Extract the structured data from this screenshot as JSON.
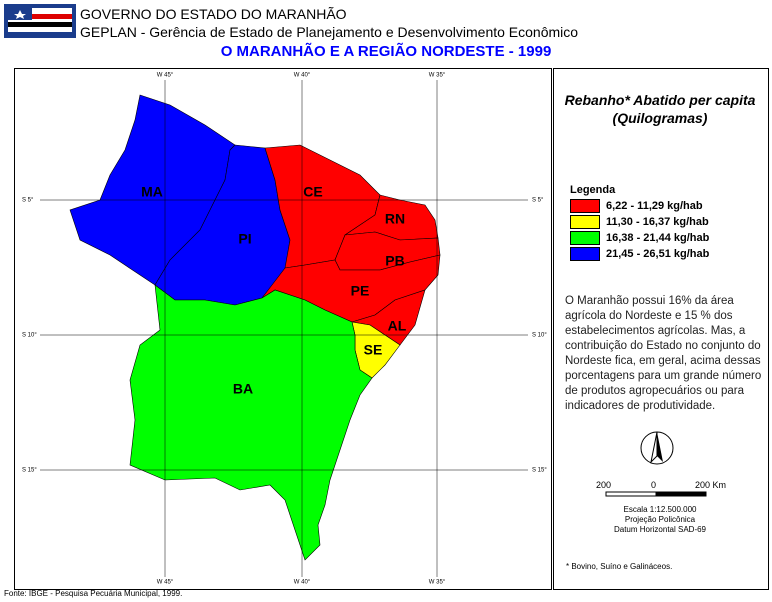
{
  "header": {
    "agency": "GOVERNO DO ESTADO DO MARANHÃO",
    "department": "GEPLAN - Gerência de Estado de Planejamento e Desenvolvimento Econômico",
    "title": "O MARANHÃO E A REGIÃO NORDESTE - 1999"
  },
  "map": {
    "longitudes": [
      "W 45°",
      "W 40°",
      "W 35°"
    ],
    "latitudes": [
      "S 5°",
      "S 10°",
      "S 15°"
    ],
    "states": [
      {
        "label": "MA",
        "class": 3
      },
      {
        "label": "PI",
        "class": 3
      },
      {
        "label": "CE",
        "class": 0
      },
      {
        "label": "RN",
        "class": 0
      },
      {
        "label": "PB",
        "class": 0
      },
      {
        "label": "PE",
        "class": 0
      },
      {
        "label": "AL",
        "class": 0
      },
      {
        "label": "SE",
        "class": 1
      },
      {
        "label": "BA",
        "class": 2
      }
    ]
  },
  "panel": {
    "title": "Rebanho* Abatido per capita",
    "unit": "(Quilogramas)",
    "legend_title": "Legenda",
    "legend": [
      {
        "label": "6,22 - 11,29 kg/hab",
        "color": "#ff0000"
      },
      {
        "label": "11,30 - 16,37 kg/hab",
        "color": "#ffff00"
      },
      {
        "label": "16,38 - 21,44 kg/hab",
        "color": "#00ff00"
      },
      {
        "label": "21,45 - 26,51 kg/hab",
        "color": "#0000ff"
      }
    ],
    "description": "O Maranhão possui 16% da área agrícola do Nordeste e 15 % dos estabelecimentos agrícolas. Mas, a contribuição do Estado no conjunto do Nordeste fica, em geral, acima dessas porcentagens para um grande número de produtos agropecuários ou para indicadores de produtividade.",
    "scale_labels": [
      "200",
      "0",
      "200 Km"
    ],
    "scale": "Escala 1:12.500.000",
    "projection": "Projeção Policônica",
    "datum": "Datum Horizontal SAD-69",
    "footnote": "* Bovino, Suíno e Galináceos."
  },
  "source": "Fonte: IBGE - Pesquisa Pecuária Municipal, 1999."
}
